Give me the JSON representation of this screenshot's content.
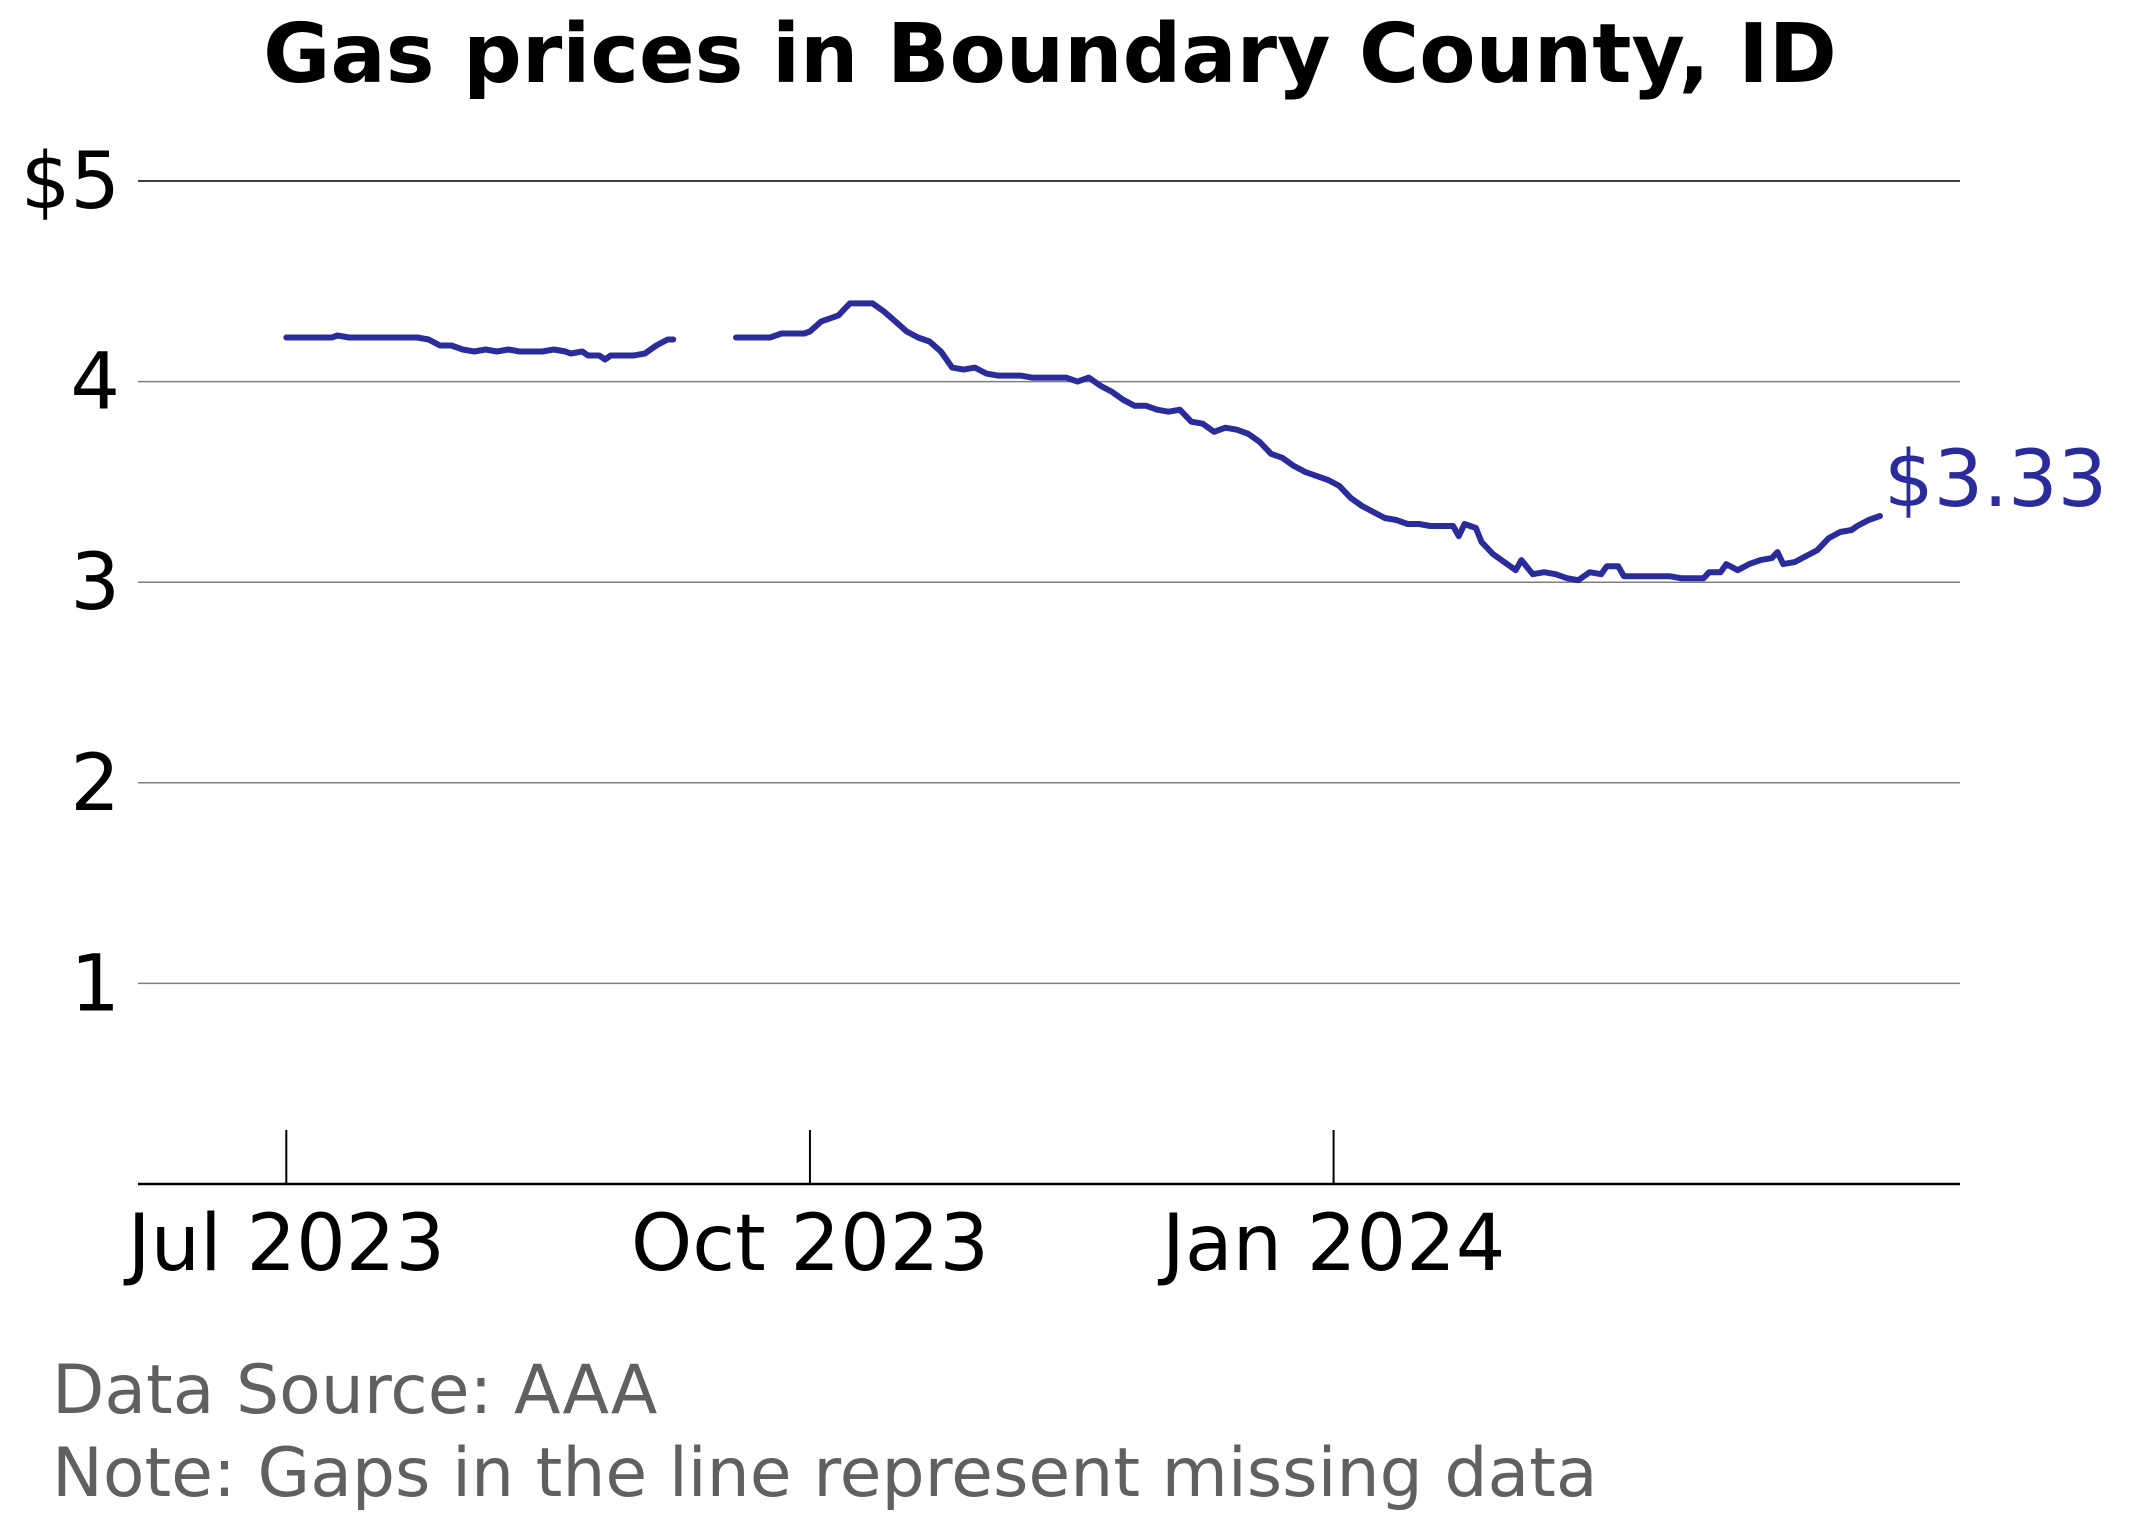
{
  "chart_data": {
    "type": "line",
    "title": "Gas prices in Boundary County, ID",
    "xlabel": "",
    "ylabel": "",
    "ylim": [
      0,
      5
    ],
    "xlim": [
      "2023-06-19",
      "2024-04-06"
    ],
    "y_ticks": [
      {
        "value": 1,
        "label": "1"
      },
      {
        "value": 2,
        "label": "2"
      },
      {
        "value": 3,
        "label": "3"
      },
      {
        "value": 4,
        "label": "4"
      },
      {
        "value": 5,
        "label": "$5"
      }
    ],
    "x_ticks": [
      {
        "date": "2023-07-01",
        "label": "Jul 2023"
      },
      {
        "date": "2023-10-01",
        "label": "Oct 2023"
      },
      {
        "date": "2024-01-01",
        "label": "Jan 2024"
      }
    ],
    "grid": "horizontal",
    "series": [
      {
        "segments": [
          [
            [
              "2023-07-01",
              4.22
            ],
            [
              "2023-07-03",
              4.22
            ],
            [
              "2023-07-05",
              4.22
            ],
            [
              "2023-07-07",
              4.22
            ],
            [
              "2023-07-09",
              4.22
            ],
            [
              "2023-07-10",
              4.23
            ],
            [
              "2023-07-12",
              4.22
            ],
            [
              "2023-07-14",
              4.22
            ],
            [
              "2023-07-16",
              4.22
            ],
            [
              "2023-07-18",
              4.22
            ],
            [
              "2023-07-20",
              4.22
            ],
            [
              "2023-07-22",
              4.22
            ],
            [
              "2023-07-24",
              4.22
            ],
            [
              "2023-07-26",
              4.21
            ],
            [
              "2023-07-28",
              4.18
            ],
            [
              "2023-07-30",
              4.18
            ],
            [
              "2023-08-01",
              4.16
            ],
            [
              "2023-08-03",
              4.15
            ],
            [
              "2023-08-05",
              4.16
            ],
            [
              "2023-08-07",
              4.15
            ],
            [
              "2023-08-09",
              4.16
            ],
            [
              "2023-08-11",
              4.15
            ],
            [
              "2023-08-13",
              4.15
            ],
            [
              "2023-08-15",
              4.15
            ],
            [
              "2023-08-17",
              4.16
            ],
            [
              "2023-08-19",
              4.15
            ],
            [
              "2023-08-20",
              4.14
            ],
            [
              "2023-08-22",
              4.15
            ],
            [
              "2023-08-23",
              4.13
            ],
            [
              "2023-08-25",
              4.13
            ],
            [
              "2023-08-26",
              4.11
            ],
            [
              "2023-08-27",
              4.13
            ],
            [
              "2023-08-29",
              4.13
            ],
            [
              "2023-08-31",
              4.13
            ],
            [
              "2023-09-02",
              4.14
            ],
            [
              "2023-09-04",
              4.18
            ],
            [
              "2023-09-06",
              4.21
            ],
            [
              "2023-09-07",
              4.21
            ]
          ],
          [
            [
              "2023-09-18",
              4.22
            ],
            [
              "2023-09-20",
              4.22
            ],
            [
              "2023-09-22",
              4.22
            ],
            [
              "2023-09-24",
              4.22
            ],
            [
              "2023-09-26",
              4.24
            ],
            [
              "2023-09-28",
              4.24
            ],
            [
              "2023-09-30",
              4.24
            ],
            [
              "2023-10-01",
              4.25
            ],
            [
              "2023-10-03",
              4.3
            ],
            [
              "2023-10-05",
              4.32
            ],
            [
              "2023-10-06",
              4.33
            ],
            [
              "2023-10-08",
              4.39
            ],
            [
              "2023-10-10",
              4.39
            ],
            [
              "2023-10-12",
              4.39
            ],
            [
              "2023-10-14",
              4.35
            ],
            [
              "2023-10-16",
              4.3
            ],
            [
              "2023-10-18",
              4.25
            ],
            [
              "2023-10-20",
              4.22
            ],
            [
              "2023-10-22",
              4.2
            ],
            [
              "2023-10-24",
              4.15
            ],
            [
              "2023-10-26",
              4.07
            ],
            [
              "2023-10-28",
              4.06
            ],
            [
              "2023-10-30",
              4.07
            ],
            [
              "2023-11-01",
              4.04
            ],
            [
              "2023-11-03",
              4.03
            ],
            [
              "2023-11-05",
              4.03
            ],
            [
              "2023-11-07",
              4.03
            ],
            [
              "2023-11-09",
              4.02
            ],
            [
              "2023-11-11",
              4.02
            ],
            [
              "2023-11-13",
              4.02
            ],
            [
              "2023-11-15",
              4.02
            ],
            [
              "2023-11-17",
              4.0
            ],
            [
              "2023-11-19",
              4.02
            ],
            [
              "2023-11-21",
              3.98
            ],
            [
              "2023-11-23",
              3.95
            ],
            [
              "2023-11-25",
              3.91
            ],
            [
              "2023-11-27",
              3.88
            ],
            [
              "2023-11-29",
              3.88
            ],
            [
              "2023-12-01",
              3.86
            ],
            [
              "2023-12-03",
              3.85
            ],
            [
              "2023-12-05",
              3.86
            ],
            [
              "2023-12-07",
              3.8
            ],
            [
              "2023-12-09",
              3.79
            ],
            [
              "2023-12-11",
              3.75
            ],
            [
              "2023-12-13",
              3.77
            ],
            [
              "2023-12-15",
              3.76
            ],
            [
              "2023-12-17",
              3.74
            ],
            [
              "2023-12-19",
              3.7
            ],
            [
              "2023-12-21",
              3.64
            ],
            [
              "2023-12-23",
              3.62
            ],
            [
              "2023-12-25",
              3.58
            ],
            [
              "2023-12-27",
              3.55
            ],
            [
              "2023-12-29",
              3.53
            ],
            [
              "2023-12-31",
              3.51
            ],
            [
              "2024-01-02",
              3.48
            ],
            [
              "2024-01-04",
              3.42
            ],
            [
              "2024-01-06",
              3.38
            ],
            [
              "2024-01-08",
              3.35
            ],
            [
              "2024-01-10",
              3.32
            ],
            [
              "2024-01-12",
              3.31
            ],
            [
              "2024-01-14",
              3.29
            ],
            [
              "2024-01-16",
              3.29
            ],
            [
              "2024-01-18",
              3.28
            ],
            [
              "2024-01-20",
              3.28
            ],
            [
              "2024-01-22",
              3.28
            ],
            [
              "2024-01-23",
              3.23
            ],
            [
              "2024-01-24",
              3.29
            ],
            [
              "2024-01-26",
              3.27
            ],
            [
              "2024-01-27",
              3.2
            ],
            [
              "2024-01-29",
              3.14
            ],
            [
              "2024-01-31",
              3.1
            ],
            [
              "2024-02-02",
              3.06
            ],
            [
              "2024-02-03",
              3.11
            ],
            [
              "2024-02-05",
              3.04
            ],
            [
              "2024-02-07",
              3.05
            ],
            [
              "2024-02-09",
              3.04
            ],
            [
              "2024-02-11",
              3.02
            ],
            [
              "2024-02-13",
              3.01
            ],
            [
              "2024-02-15",
              3.05
            ],
            [
              "2024-02-17",
              3.04
            ],
            [
              "2024-02-18",
              3.08
            ],
            [
              "2024-02-20",
              3.08
            ],
            [
              "2024-02-21",
              3.03
            ],
            [
              "2024-02-23",
              3.03
            ],
            [
              "2024-02-25",
              3.03
            ],
            [
              "2024-02-27",
              3.03
            ],
            [
              "2024-02-29",
              3.03
            ],
            [
              "2024-03-02",
              3.02
            ],
            [
              "2024-03-04",
              3.02
            ],
            [
              "2024-03-06",
              3.02
            ],
            [
              "2024-03-07",
              3.05
            ],
            [
              "2024-03-09",
              3.05
            ],
            [
              "2024-03-10",
              3.09
            ],
            [
              "2024-03-12",
              3.06
            ],
            [
              "2024-03-14",
              3.09
            ],
            [
              "2024-03-16",
              3.11
            ],
            [
              "2024-03-18",
              3.12
            ],
            [
              "2024-03-19",
              3.15
            ],
            [
              "2024-03-20",
              3.09
            ],
            [
              "2024-03-22",
              3.1
            ],
            [
              "2024-03-24",
              3.13
            ],
            [
              "2024-03-26",
              3.16
            ],
            [
              "2024-03-28",
              3.22
            ],
            [
              "2024-03-30",
              3.25
            ],
            [
              "2024-04-01",
              3.26
            ],
            [
              "2024-04-02",
              3.28
            ],
            [
              "2024-04-04",
              3.31
            ],
            [
              "2024-04-06",
              3.33
            ]
          ]
        ]
      }
    ],
    "end_label": "$3.33",
    "line_color": "#2b2c9c",
    "grid_color": "#7f7f7f",
    "axis_color": "#000000"
  },
  "footer": {
    "source": "Data Source: AAA",
    "note": "Note: Gaps in the line represent missing data"
  }
}
